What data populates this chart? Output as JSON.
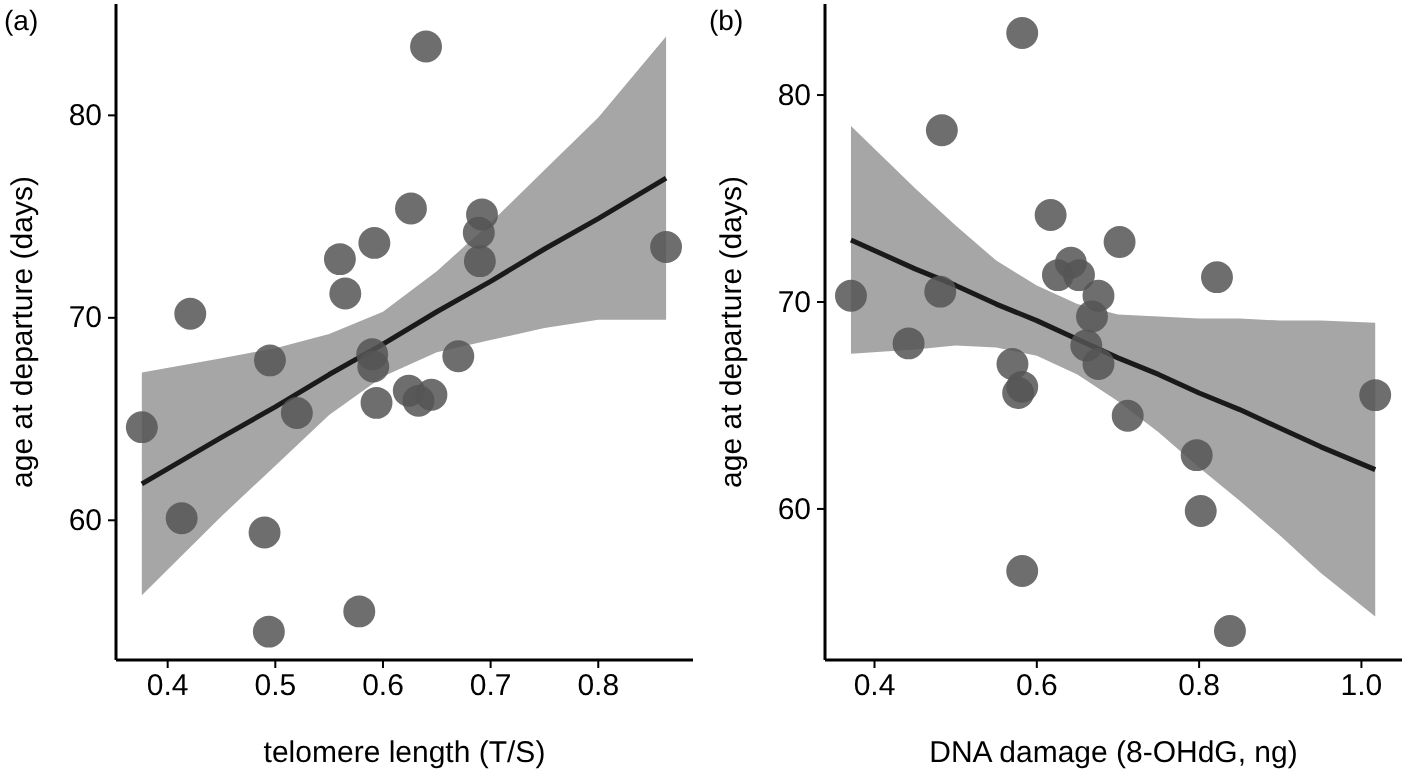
{
  "chart_data": [
    {
      "type": "scatter",
      "title": "(a)",
      "xlabel": "telomere length (T/S)",
      "ylabel": "age at departure (days)",
      "xlim": [
        0.352,
        0.888
      ],
      "xticks": [
        0.4,
        0.5,
        0.6,
        0.7,
        0.8
      ],
      "ylim": [
        53.1,
        85.5
      ],
      "yticks": [
        60,
        70,
        80
      ],
      "grid": false,
      "series": [
        {
          "marker": "circle",
          "color": "#555555",
          "x": [
            0.376,
            0.421,
            0.413,
            0.495,
            0.49,
            0.494,
            0.52,
            0.56,
            0.565,
            0.578,
            0.592,
            0.59,
            0.591,
            0.594,
            0.626,
            0.624,
            0.633,
            0.645,
            0.64,
            0.67,
            0.692,
            0.689,
            0.69,
            0.863
          ],
          "values": [
            64.6,
            70.2,
            60.1,
            67.9,
            59.4,
            54.5,
            65.3,
            72.9,
            71.2,
            55.5,
            73.7,
            68.2,
            67.6,
            65.8,
            75.4,
            66.4,
            65.9,
            66.2,
            83.4,
            68.1,
            75.1,
            74.2,
            72.8,
            73.5
          ]
        },
        {
          "type": "line",
          "color": "#1a1a1a",
          "line_style": "solid",
          "x": [
            0.376,
            0.45,
            0.5,
            0.55,
            0.6,
            0.65,
            0.7,
            0.75,
            0.8,
            0.863
          ],
          "values": [
            61.8,
            64.1,
            65.6,
            67.2,
            68.7,
            70.3,
            71.8,
            73.4,
            74.9,
            76.9
          ],
          "lower": [
            56.3,
            60.2,
            62.7,
            65.2,
            67.1,
            68.3,
            68.9,
            69.5,
            69.9,
            69.9
          ],
          "upper": [
            67.3,
            68.0,
            68.5,
            69.2,
            70.3,
            72.3,
            74.7,
            77.3,
            79.9,
            83.9
          ]
        }
      ]
    },
    {
      "type": "scatter",
      "title": "(b)",
      "xlabel": "DNA damage (8-OHdG, ng)",
      "ylabel": "age at departure (days)",
      "xlim": [
        0.339,
        1.05
      ],
      "xticks": [
        0.4,
        0.6,
        0.8,
        {
          "value": 1,
          "label": "1.0"
        }
      ],
      "ylim": [
        52.7,
        84.4
      ],
      "yticks": [
        60,
        70,
        80
      ],
      "grid": false,
      "series": [
        {
          "marker": "circle",
          "color": "#555555",
          "x": [
            0.371,
            0.483,
            0.481,
            0.442,
            0.582,
            0.57,
            0.577,
            0.582,
            0.582,
            0.617,
            0.626,
            0.642,
            0.652,
            0.676,
            0.668,
            0.661,
            0.676,
            0.702,
            0.712,
            0.797,
            0.802,
            0.822,
            0.838,
            1.017
          ],
          "values": [
            70.3,
            78.3,
            70.5,
            68.0,
            83.0,
            67.0,
            65.6,
            65.9,
            57.0,
            74.2,
            71.3,
            71.9,
            71.3,
            70.3,
            69.3,
            67.9,
            67.0,
            72.9,
            64.5,
            62.6,
            59.9,
            71.2,
            54.1,
            65.5
          ]
        },
        {
          "type": "line",
          "color": "#1a1a1a",
          "line_style": "solid",
          "x": [
            0.371,
            0.45,
            0.5,
            0.55,
            0.6,
            0.65,
            0.7,
            0.75,
            0.8,
            0.85,
            0.9,
            0.95,
            1.017
          ],
          "values": [
            73.0,
            71.6,
            70.8,
            69.9,
            69.1,
            68.2,
            67.3,
            66.5,
            65.6,
            64.8,
            63.9,
            63.0,
            61.9
          ],
          "lower": [
            67.5,
            67.7,
            67.9,
            67.8,
            67.4,
            66.5,
            65.2,
            63.7,
            62.0,
            60.4,
            58.7,
            56.9,
            54.8
          ],
          "upper": [
            78.5,
            75.5,
            73.7,
            72.0,
            70.8,
            69.9,
            69.4,
            69.3,
            69.2,
            69.2,
            69.1,
            69.1,
            69.0
          ]
        }
      ]
    }
  ]
}
